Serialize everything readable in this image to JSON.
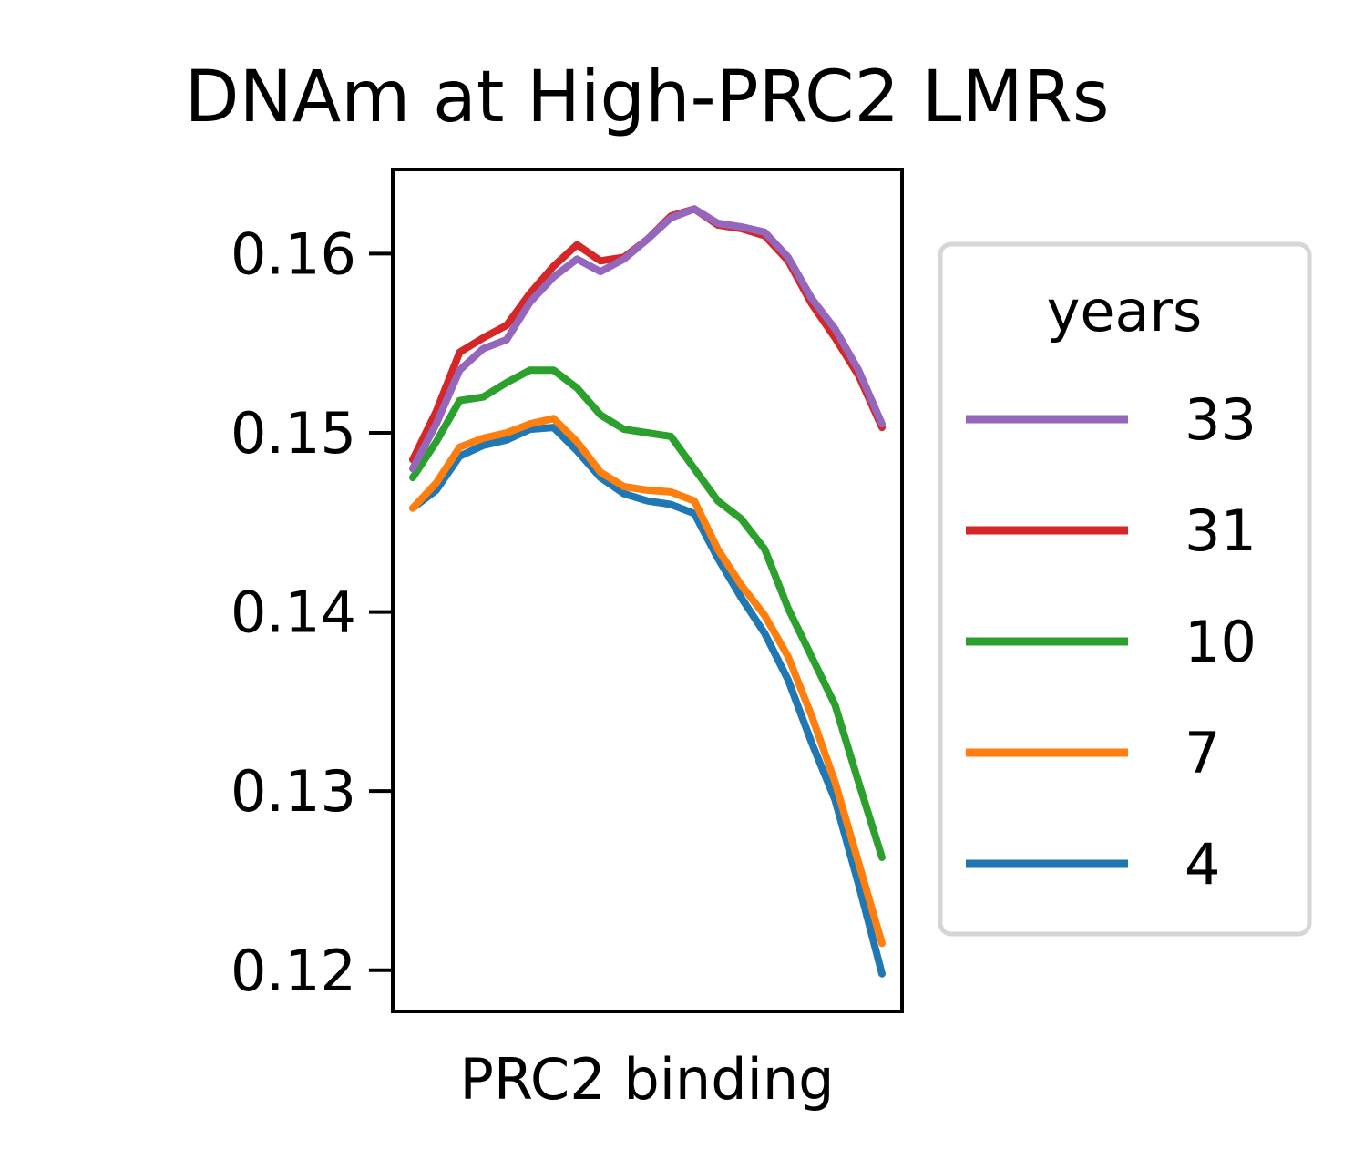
{
  "chart_data": {
    "type": "line",
    "title": "DNAm at High-PRC2 LMRs",
    "xlabel": "PRC2 binding",
    "ylabel": "",
    "xlim": [
      0,
      100
    ],
    "ylim": [
      0.1177,
      0.1647
    ],
    "yticks": [
      0.12,
      0.13,
      0.14,
      0.15,
      0.16
    ],
    "ytick_labels": [
      "0.12",
      "0.13",
      "0.14",
      "0.15",
      "0.16"
    ],
    "legend": {
      "title": "years",
      "position": "right",
      "entries": [
        "33",
        "31",
        "10",
        "7",
        "4"
      ]
    },
    "x": [
      0,
      5,
      10,
      15,
      20,
      25,
      30,
      35,
      40,
      45,
      50,
      55,
      60,
      65,
      70,
      75,
      80,
      85,
      90,
      95,
      100
    ],
    "series": [
      {
        "name": "33",
        "color": "#9467bd",
        "values": [
          0.148,
          0.1505,
          0.1535,
          0.1547,
          0.1552,
          0.1573,
          0.1587,
          0.1597,
          0.159,
          0.1597,
          0.1608,
          0.162,
          0.1625,
          0.1617,
          0.1615,
          0.1612,
          0.1598,
          0.1575,
          0.1558,
          0.1535,
          0.1505
        ]
      },
      {
        "name": "31",
        "color": "#d62728",
        "values": [
          0.1485,
          0.1512,
          0.1545,
          0.1553,
          0.156,
          0.1578,
          0.1593,
          0.1605,
          0.1596,
          0.1598,
          0.1608,
          0.1621,
          0.1625,
          0.1616,
          0.1614,
          0.161,
          0.1596,
          0.1572,
          0.1553,
          0.1532,
          0.1503
        ]
      },
      {
        "name": "10",
        "color": "#2ca02c",
        "values": [
          0.1475,
          0.1495,
          0.1518,
          0.152,
          0.1528,
          0.1535,
          0.1535,
          0.1525,
          0.151,
          0.1502,
          0.15,
          0.1498,
          0.148,
          0.1462,
          0.1452,
          0.1435,
          0.1402,
          0.1375,
          0.1348,
          0.1305,
          0.1263
        ]
      },
      {
        "name": "7",
        "color": "#ff7f0e",
        "values": [
          0.1458,
          0.1472,
          0.1492,
          0.1497,
          0.15,
          0.1505,
          0.1508,
          0.1495,
          0.1478,
          0.147,
          0.1468,
          0.1467,
          0.1462,
          0.1435,
          0.1415,
          0.1398,
          0.1375,
          0.1342,
          0.1305,
          0.126,
          0.1215
        ]
      },
      {
        "name": "4",
        "color": "#1f77b4",
        "values": [
          0.1458,
          0.1468,
          0.1487,
          0.1493,
          0.1496,
          0.1502,
          0.1503,
          0.149,
          0.1475,
          0.1466,
          0.1462,
          0.146,
          0.1455,
          0.143,
          0.1408,
          0.1388,
          0.1362,
          0.1327,
          0.1295,
          0.1248,
          0.1198
        ]
      }
    ]
  }
}
